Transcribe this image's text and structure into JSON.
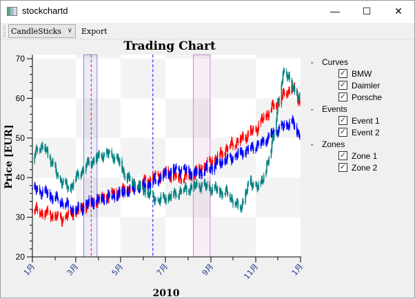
{
  "window": {
    "title": "stockchartd",
    "minimize": "—",
    "maximize": "☐",
    "close": "✕"
  },
  "toolbar": {
    "mode_select": "CandleSticks",
    "export_label": "Export"
  },
  "legend": {
    "groups": [
      {
        "label": "Curves",
        "items": [
          {
            "label": "BMW",
            "checked": true
          },
          {
            "label": "Daimler",
            "checked": true
          },
          {
            "label": "Porsche",
            "checked": true
          }
        ]
      },
      {
        "label": "Events",
        "items": [
          {
            "label": "Event 1",
            "checked": true
          },
          {
            "label": "Event 2",
            "checked": true
          }
        ]
      },
      {
        "label": "Zones",
        "items": [
          {
            "label": "Zone 1",
            "checked": true
          },
          {
            "label": "Zone 2",
            "checked": true
          }
        ]
      }
    ]
  },
  "chart_data": {
    "type": "candlestick",
    "title": "Trading Chart",
    "xlabel": "2010",
    "ylabel": "Price [EUR]",
    "ylim": [
      20,
      71
    ],
    "xlim": [
      "2010-01-01",
      "2011-01-01"
    ],
    "yticks": [
      "20",
      "30",
      "40",
      "50",
      "60",
      "70"
    ],
    "xticks": [
      {
        "date": "2010-01-01",
        "label": "1月"
      },
      {
        "date": "2010-03-01",
        "label": "3月"
      },
      {
        "date": "2010-05-01",
        "label": "5月"
      },
      {
        "date": "2010-07-01",
        "label": "7月"
      },
      {
        "date": "2010-09-01",
        "label": "9月"
      },
      {
        "date": "2010-11-01",
        "label": "11月"
      },
      {
        "date": "2011-01-01",
        "label": "1月"
      }
    ],
    "series": [
      {
        "name": "BMW",
        "color": "#ff0000",
        "points": [
          [
            "2010-01-01",
            32
          ],
          [
            "2010-01-20",
            31
          ],
          [
            "2010-02-10",
            29.5
          ],
          [
            "2010-03-01",
            31.5
          ],
          [
            "2010-03-20",
            33.5
          ],
          [
            "2010-04-10",
            35
          ],
          [
            "2010-05-01",
            36.5
          ],
          [
            "2010-05-20",
            38
          ],
          [
            "2010-06-10",
            39.5
          ],
          [
            "2010-07-01",
            41
          ],
          [
            "2010-07-20",
            40
          ],
          [
            "2010-08-10",
            41
          ],
          [
            "2010-08-25",
            43
          ],
          [
            "2010-09-10",
            45
          ],
          [
            "2010-09-25",
            48
          ],
          [
            "2010-10-15",
            50
          ],
          [
            "2010-11-01",
            52
          ],
          [
            "2010-11-20",
            57
          ],
          [
            "2010-12-05",
            60
          ],
          [
            "2010-12-20",
            63
          ],
          [
            "2010-12-31",
            59
          ]
        ]
      },
      {
        "name": "Daimler",
        "color": "#0000ff",
        "points": [
          [
            "2010-01-01",
            37
          ],
          [
            "2010-01-20",
            36
          ],
          [
            "2010-02-10",
            34
          ],
          [
            "2010-03-01",
            31.5
          ],
          [
            "2010-03-20",
            33.5
          ],
          [
            "2010-04-10",
            35
          ],
          [
            "2010-05-01",
            36
          ],
          [
            "2010-05-20",
            37
          ],
          [
            "2010-06-10",
            38.5
          ],
          [
            "2010-07-01",
            41
          ],
          [
            "2010-07-20",
            42
          ],
          [
            "2010-08-10",
            41
          ],
          [
            "2010-08-25",
            42
          ],
          [
            "2010-09-10",
            43.5
          ],
          [
            "2010-10-01",
            45
          ],
          [
            "2010-10-20",
            47
          ],
          [
            "2010-11-10",
            49
          ],
          [
            "2010-12-01",
            52
          ],
          [
            "2010-12-20",
            54
          ],
          [
            "2010-12-31",
            51
          ]
        ]
      },
      {
        "name": "Porsche",
        "color": "#008080",
        "points": [
          [
            "2010-01-01",
            44
          ],
          [
            "2010-01-08",
            48
          ],
          [
            "2010-01-20",
            47
          ],
          [
            "2010-02-05",
            40
          ],
          [
            "2010-02-20",
            37
          ],
          [
            "2010-03-05",
            41
          ],
          [
            "2010-03-20",
            44
          ],
          [
            "2010-04-10",
            46
          ],
          [
            "2010-04-25",
            45
          ],
          [
            "2010-05-10",
            40
          ],
          [
            "2010-06-01",
            37
          ],
          [
            "2010-06-20",
            34
          ],
          [
            "2010-07-05",
            35
          ],
          [
            "2010-07-25",
            37
          ],
          [
            "2010-08-15",
            38
          ],
          [
            "2010-09-05",
            37
          ],
          [
            "2010-09-25",
            36
          ],
          [
            "2010-10-10",
            32
          ],
          [
            "2010-10-25",
            39
          ],
          [
            "2010-11-05",
            37
          ],
          [
            "2010-11-20",
            45
          ],
          [
            "2010-12-01",
            58
          ],
          [
            "2010-12-10",
            68
          ],
          [
            "2010-12-20",
            63
          ],
          [
            "2010-12-31",
            60
          ]
        ]
      }
    ],
    "events": [
      {
        "name": "Event 1",
        "date": "2010-03-22",
        "color": "#ff0000"
      },
      {
        "name": "Event 2",
        "date": "2010-06-14",
        "color": "#0000ff"
      }
    ],
    "zones": [
      {
        "name": "Zone 1",
        "from": "2010-03-12",
        "to": "2010-03-30",
        "color": "#8888cc"
      },
      {
        "name": "Zone 2",
        "from": "2010-08-08",
        "to": "2010-08-31",
        "color": "#cc88cc"
      }
    ]
  }
}
